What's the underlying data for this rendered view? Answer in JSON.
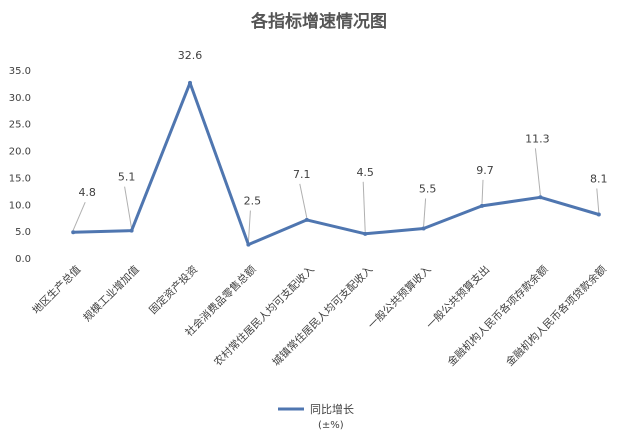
{
  "chart_data": {
    "type": "line",
    "title": "各指标增速情况图",
    "categories": [
      "地区生产总值",
      "规模工业增加值",
      "固定资产投资",
      "社会消费品零售总额",
      "农村常住居民人均可支配收入",
      "城镇常住居民人均可支配收入",
      "一般公共预算收入",
      "一般公共预算支出",
      "金融机构人民币各项存款余额",
      "金融机构人民币各项贷款余额"
    ],
    "series": [
      {
        "name": "同比增长",
        "values": [
          4.8,
          5.1,
          32.6,
          2.5,
          7.1,
          4.5,
          5.5,
          9.7,
          11.3,
          8.1
        ],
        "value_labels": [
          "4.8",
          "5.1",
          "32.6",
          "2.5",
          "7.1",
          "4.5",
          "5.5",
          "9.7",
          "11.3",
          "8.1"
        ]
      }
    ],
    "ylim": [
      0,
      35
    ],
    "yticks": [
      "0.0",
      "5.0",
      "10.0",
      "15.0",
      "20.0",
      "25.0",
      "30.0",
      "35.0"
    ],
    "grid": false,
    "legend": {
      "position": "bottom",
      "label": "同比增长",
      "sublabel": "(±%)"
    },
    "colors": {
      "line": "#4f76b0",
      "leader": "#b0b0b0",
      "text": "#404040",
      "title": "#555555"
    }
  }
}
